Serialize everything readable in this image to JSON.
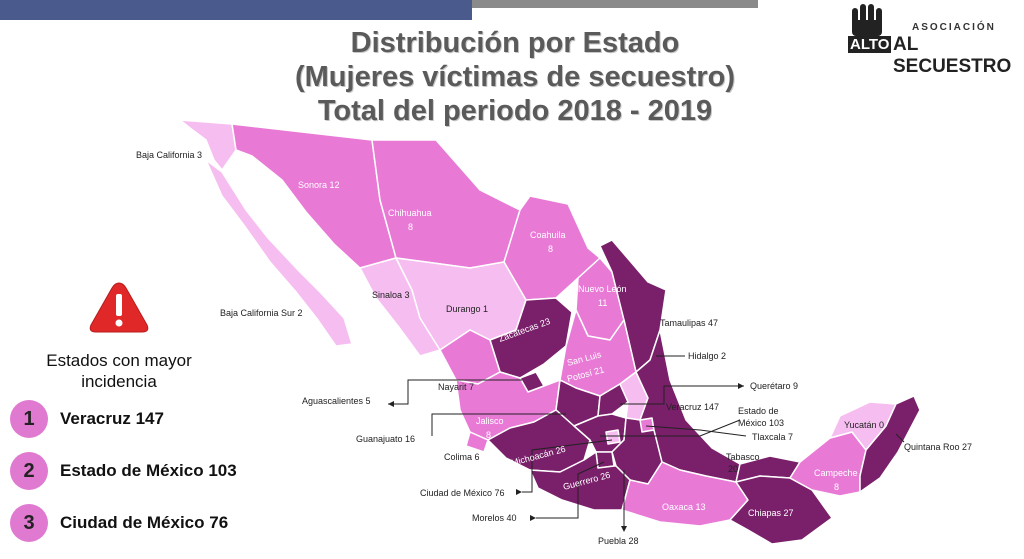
{
  "title": {
    "line1": "Distribución por Estado",
    "line2": "(Mujeres víctimas de secuestro)",
    "line3": "Total del periodo 2018 - 2019"
  },
  "logo": {
    "assoc": "ASOCIACIÓN",
    "alto": "ALTO",
    "name": "AL SECUESTRO"
  },
  "sidebar": {
    "heading_line1": "Estados con mayor",
    "heading_line2": "incidencia",
    "ranks": [
      {
        "num": "1",
        "label": "Veracruz  147"
      },
      {
        "num": "2",
        "label": "Estado de México 103"
      },
      {
        "num": "3",
        "label": "Ciudad de México  76"
      }
    ]
  },
  "colors": {
    "light": "#f6bdf0",
    "medium": "#e87ad6",
    "dark": "#7a1f6a",
    "warning": "#e02828"
  },
  "states": [
    {
      "name": "Baja California 3"
    },
    {
      "name": "Sonora 12"
    },
    {
      "name": "Chihuahua"
    },
    {
      "name": "8"
    },
    {
      "name": "Coahuila"
    },
    {
      "name": "8"
    },
    {
      "name": "Nuevo León"
    },
    {
      "name": "11"
    },
    {
      "name": "Tamaulipas 47"
    },
    {
      "name": "Baja California Sur 2"
    },
    {
      "name": "Sinaloa 3"
    },
    {
      "name": "Durango 1"
    },
    {
      "name": "Zacatecas 23"
    },
    {
      "name": "San Luis"
    },
    {
      "name": "Potosí 21"
    },
    {
      "name": "Hidalgo 2"
    },
    {
      "name": "Nayarit 7"
    },
    {
      "name": "Aguascalientes 5"
    },
    {
      "name": "Querétaro 9"
    },
    {
      "name": "Veracruz 147"
    },
    {
      "name": "Estado de"
    },
    {
      "name": "México 103"
    },
    {
      "name": "Jalisco"
    },
    {
      "name": "8"
    },
    {
      "name": "Guanajuato 16"
    },
    {
      "name": "Tlaxcala 7"
    },
    {
      "name": "Michoacán 26"
    },
    {
      "name": "Colima 6"
    },
    {
      "name": "Tabasco"
    },
    {
      "name": "20"
    },
    {
      "name": "Yucatán 0"
    },
    {
      "name": "Campeche"
    },
    {
      "name": "8"
    },
    {
      "name": "Quintana Roo 27"
    },
    {
      "name": "Guerrero 26"
    },
    {
      "name": "Ciudad de México 76"
    },
    {
      "name": "Oaxaca 13"
    },
    {
      "name": "Chiapas 27"
    },
    {
      "name": "Morelos 40"
    },
    {
      "name": "Puebla 28"
    }
  ]
}
